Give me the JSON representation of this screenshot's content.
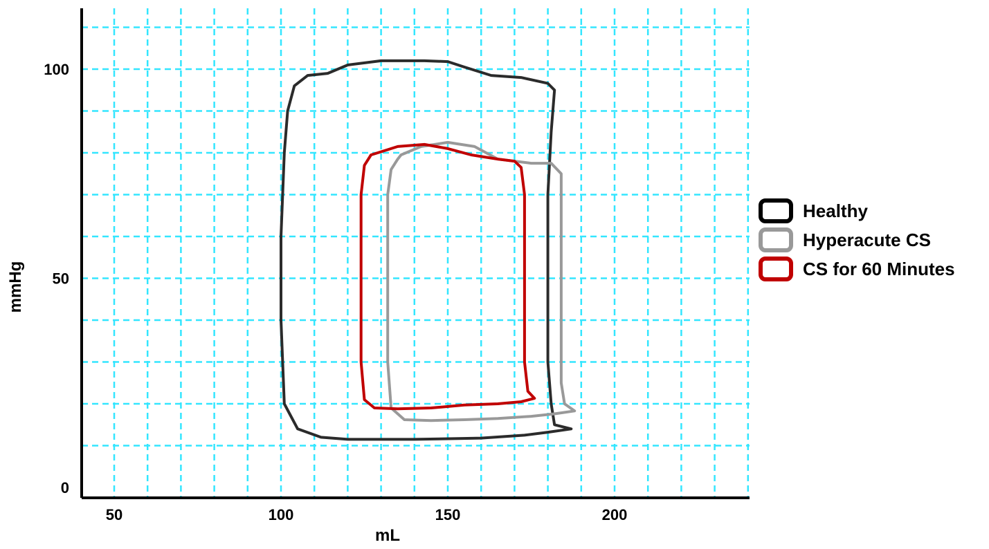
{
  "chart_data": {
    "type": "line",
    "title": "",
    "xlabel": "mL",
    "ylabel": "mmHg",
    "xlim": [
      40,
      240
    ],
    "ylim": [
      -2,
      115
    ],
    "x_ticks": [
      50,
      100,
      150,
      200
    ],
    "y_ticks": [
      0,
      50,
      100
    ],
    "grid": true,
    "grid_color": "#33e6ff",
    "legend_position": "right",
    "series": [
      {
        "name": "Healthy",
        "color": "#2b2b2b",
        "x": [
          114,
          120,
          130,
          143,
          150,
          155,
          163,
          172,
          180,
          182,
          181,
          180,
          180,
          180,
          181,
          182,
          187,
          180,
          173,
          160,
          140,
          120,
          112,
          105,
          101,
          100,
          100,
          101,
          102,
          104,
          108,
          114
        ],
        "y": [
          99,
          101,
          102,
          102,
          101.8,
          100.5,
          98.5,
          98,
          96.6,
          95,
          85,
          70,
          50,
          30,
          20,
          15,
          14,
          13.2,
          12.5,
          11.8,
          11.5,
          11.5,
          12,
          14,
          20,
          40,
          60,
          80,
          90,
          96,
          98.5,
          99
        ]
      },
      {
        "name": "Hyperacute CS",
        "color": "#999999",
        "x": [
          136,
          142,
          150,
          158,
          165,
          175,
          181,
          184,
          184,
          184,
          184,
          185,
          188,
          182,
          175,
          165,
          155,
          145,
          137,
          133,
          132,
          132,
          132,
          133,
          135,
          136
        ],
        "y": [
          79.5,
          81.5,
          82.5,
          81.5,
          78.5,
          77.5,
          77.5,
          75,
          60,
          40,
          25,
          20,
          18.3,
          17.6,
          17,
          16.5,
          16.2,
          16,
          16.2,
          19,
          30,
          50,
          70,
          76,
          78.5,
          79.5
        ]
      },
      {
        "name": "CS for 60 Minutes",
        "color": "#c00000",
        "x": [
          129,
          135,
          143,
          150,
          157,
          165,
          170,
          172,
          173,
          173,
          173,
          174,
          176,
          172,
          165,
          155,
          145,
          135,
          128,
          125,
          124,
          124,
          124,
          125,
          127,
          129
        ],
        "y": [
          80,
          81.5,
          82,
          81,
          79.5,
          78.5,
          78,
          76.5,
          70,
          50,
          30,
          23,
          21.3,
          20.5,
          20,
          19.7,
          19,
          18.8,
          19,
          21,
          30,
          50,
          70,
          77,
          79.5,
          80
        ]
      }
    ]
  }
}
